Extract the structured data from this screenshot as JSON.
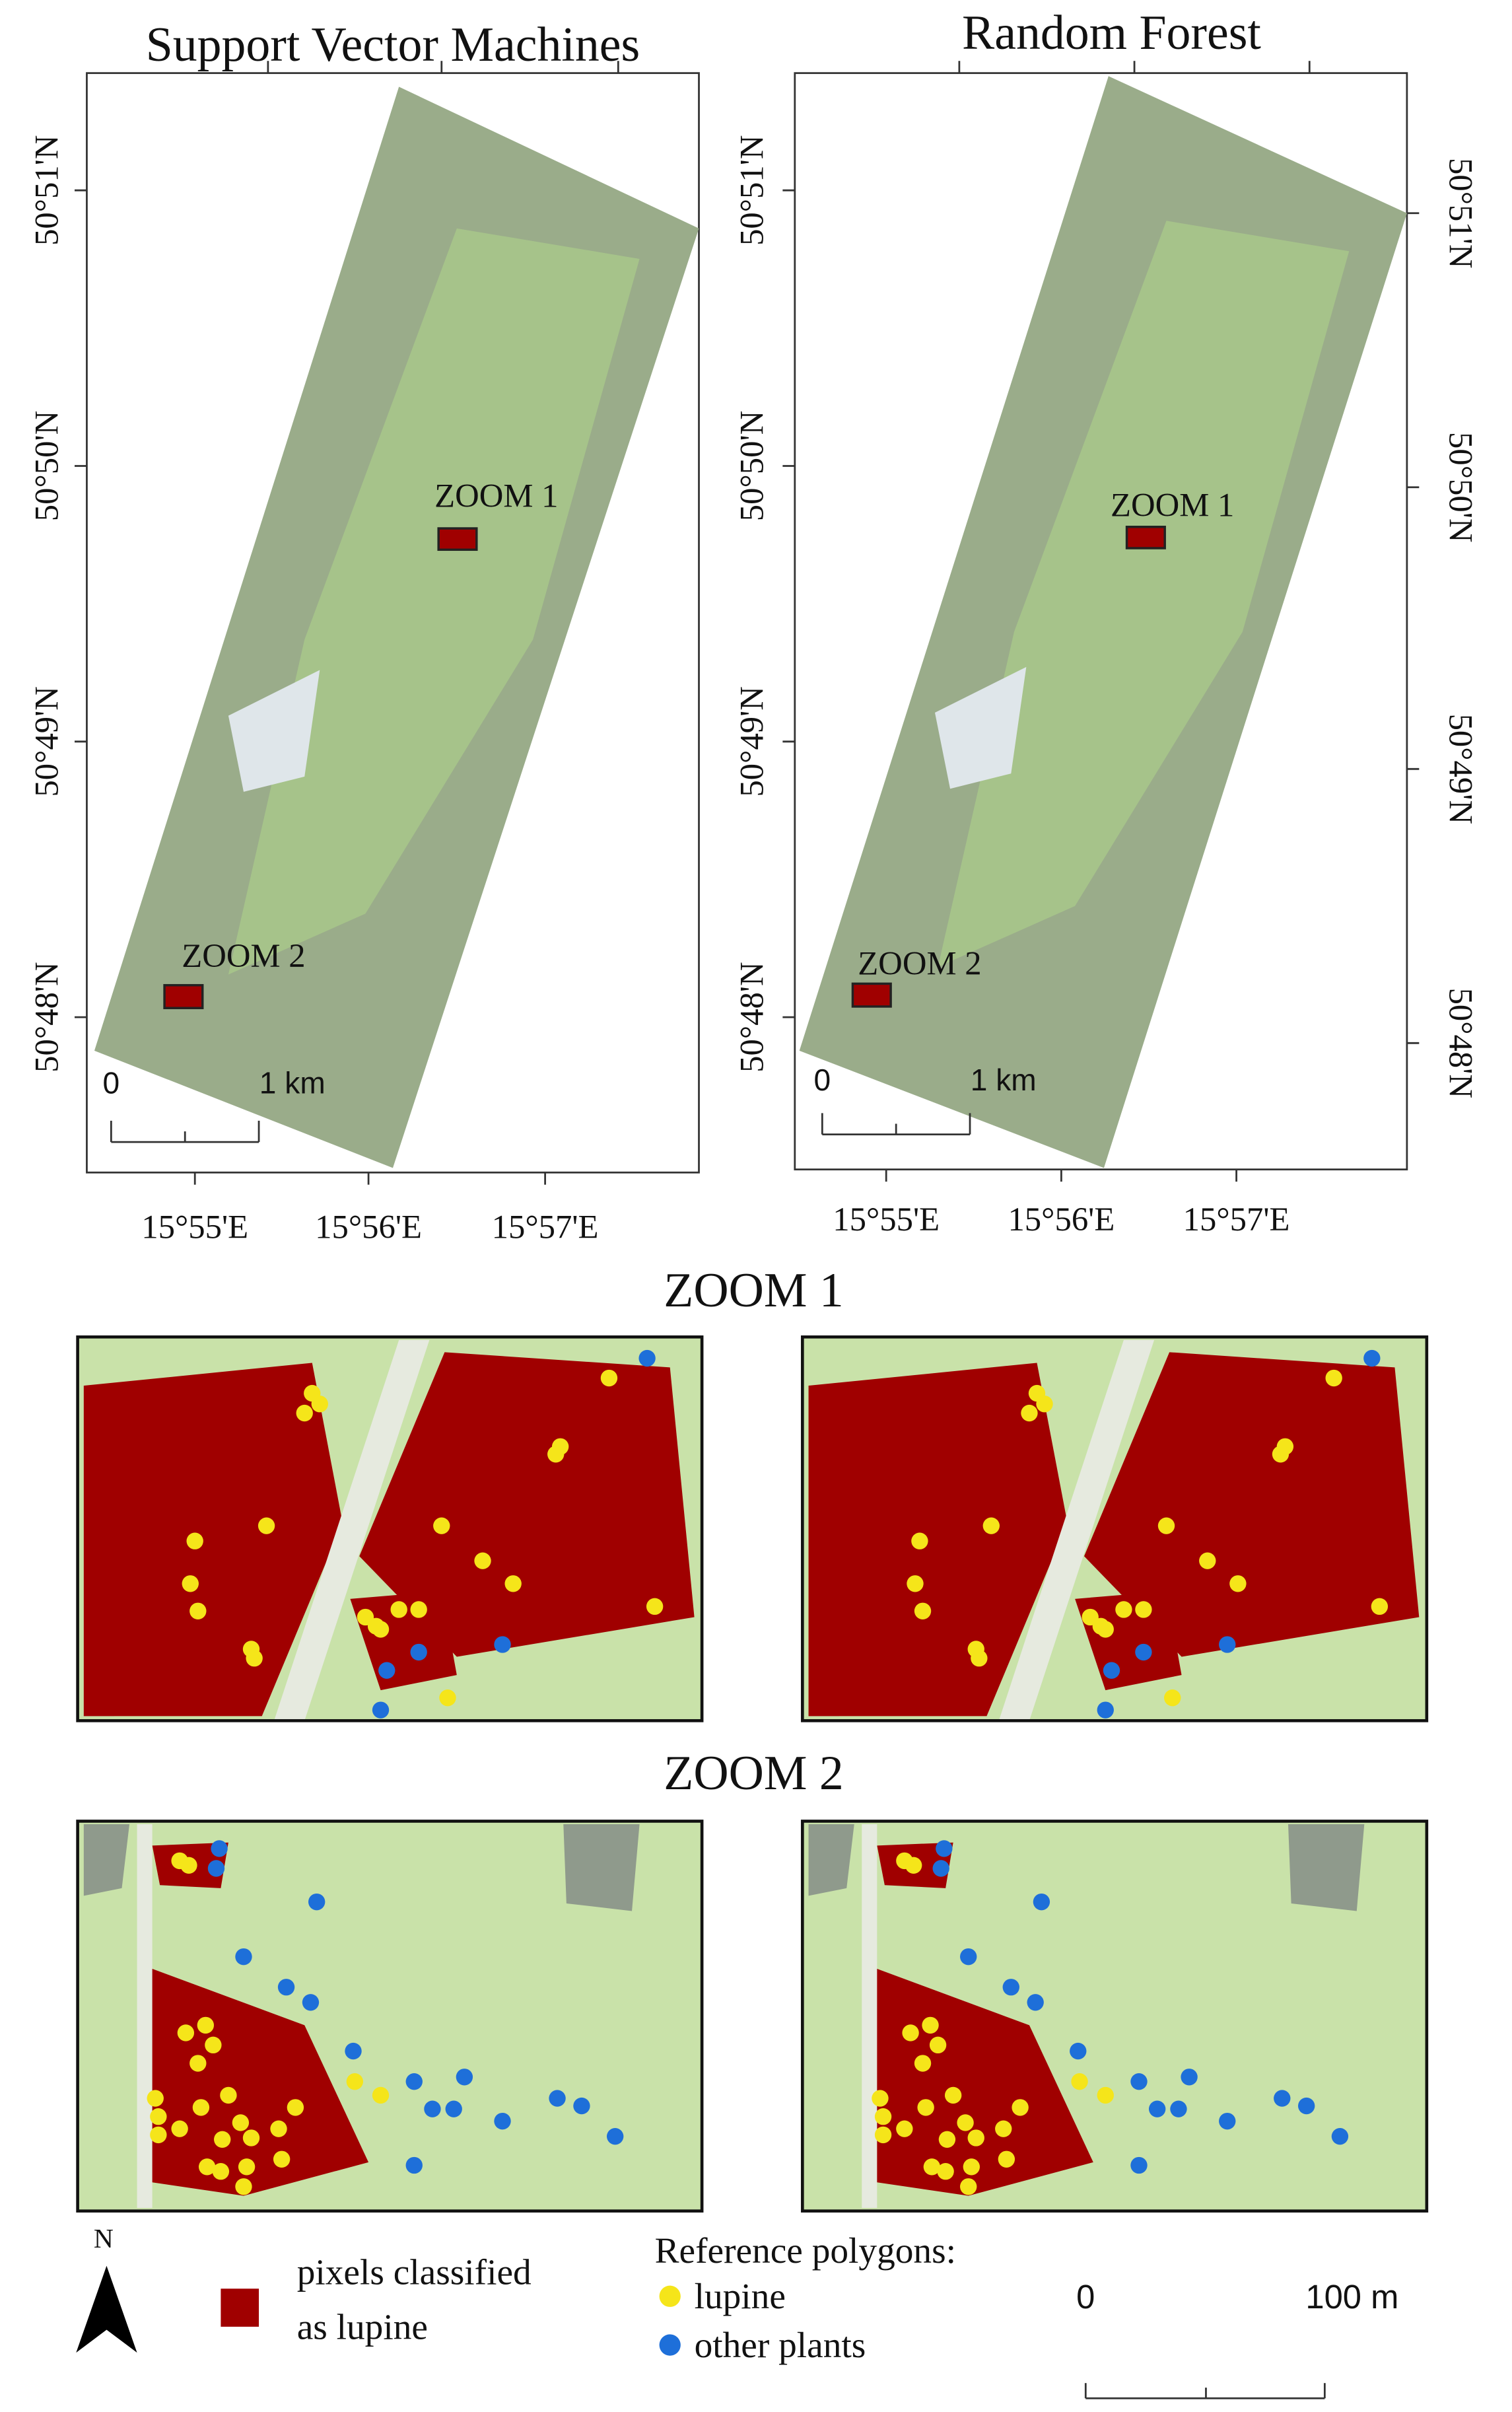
{
  "maps": [
    {
      "title": "Support Vector Machines",
      "lat_labels": [
        "50°51'N",
        "50°50'N",
        "50°49'N",
        "50°48'N"
      ],
      "lon_labels": [
        "15°55'E",
        "15°56'E",
        "15°57'E"
      ],
      "zoom_labels": [
        "ZOOM 1",
        "ZOOM 2"
      ],
      "scale_labels": [
        "0",
        "1 km"
      ]
    },
    {
      "title": "Random Forest",
      "lat_labels": [
        "50°51'N",
        "50°50'N",
        "50°49'N",
        "50°48'N"
      ],
      "lon_labels": [
        "15°55'E",
        "15°56'E",
        "15°57'E"
      ],
      "zoom_labels": [
        "ZOOM 1",
        "ZOOM 2"
      ],
      "scale_labels": [
        "0",
        "1 km"
      ]
    }
  ],
  "zoom_headings": [
    "ZOOM 1",
    "ZOOM 2"
  ],
  "legend": {
    "north": "N",
    "classified": [
      "pixels classified",
      "as lupine"
    ],
    "reference_title": "Reference polygons:",
    "reference_items": [
      "lupine",
      "other plants"
    ],
    "scale_labels": [
      "0",
      "100 m"
    ]
  }
}
